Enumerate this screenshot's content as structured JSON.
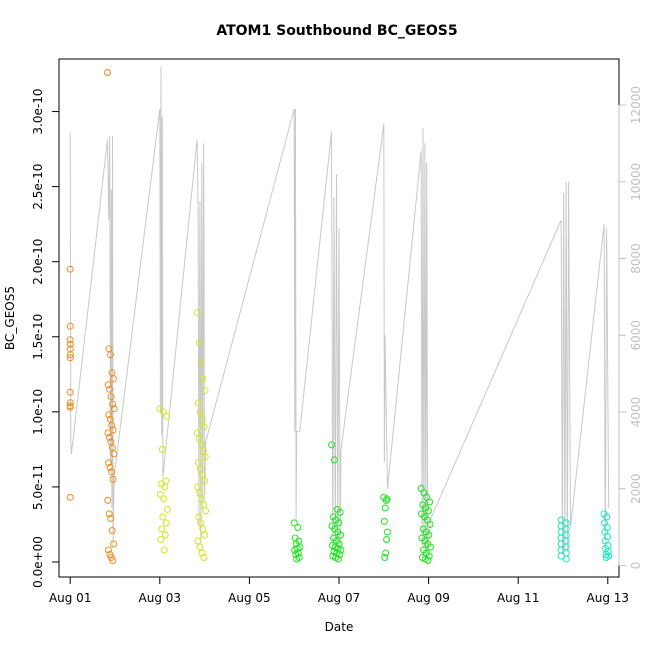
{
  "chart_data": {
    "type": "scatter",
    "title": "ATOM1 Southbound BC_GEOS5",
    "xlabel": "Date",
    "ylabel": "BC_GEOS5",
    "x_axis": {
      "type": "date",
      "range": [
        "2016-07-31T18:00",
        "2016-08-13T06:00"
      ],
      "ticks": [
        {
          "value": "2016-08-01",
          "label": "Aug 01"
        },
        {
          "value": "2016-08-03",
          "label": "Aug 03"
        },
        {
          "value": "2016-08-05",
          "label": "Aug 05"
        },
        {
          "value": "2016-08-07",
          "label": "Aug 07"
        },
        {
          "value": "2016-08-09",
          "label": "Aug 09"
        },
        {
          "value": "2016-08-11",
          "label": "Aug 11"
        },
        {
          "value": "2016-08-13",
          "label": "Aug 13"
        }
      ]
    },
    "y_axis_left": {
      "range": [
        -1e-11,
        3.35e-10
      ],
      "ticks": [
        {
          "value": 0,
          "label": "0.0e+00"
        },
        {
          "value": 5e-11,
          "label": "5.0e-11"
        },
        {
          "value": 1e-10,
          "label": "1.0e-10"
        },
        {
          "value": 1.5e-10,
          "label": "1.5e-10"
        },
        {
          "value": 2e-10,
          "label": "2.0e-10"
        },
        {
          "value": 2.5e-10,
          "label": "2.5e-10"
        },
        {
          "value": 3e-10,
          "label": "3.0e-10"
        }
      ]
    },
    "y_axis_right": {
      "range": [
        -300,
        13200
      ],
      "color": "#c0c0c0",
      "ticks": [
        {
          "value": 0,
          "label": "0"
        },
        {
          "value": 2000,
          "label": "2000"
        },
        {
          "value": 4000,
          "label": "4000"
        },
        {
          "value": 6000,
          "label": "6000"
        },
        {
          "value": 8000,
          "label": "8000"
        },
        {
          "value": 10000,
          "label": "10000"
        },
        {
          "value": 12000,
          "label": "12000"
        }
      ]
    },
    "grid": false,
    "legend": "none",
    "series": [
      {
        "style": "open-circle",
        "axis": "left",
        "groups": [
          {
            "date": "2016-08-01",
            "t_start": "2016-08-01T00:00",
            "t_end": "2016-08-01T00:05",
            "color": "#f08c1e",
            "y": [
              1.95e-10,
              1.57e-10,
              1.48e-10,
              1.45e-10,
              1.42e-10,
              1.38e-10,
              1.36e-10,
              1.13e-10,
              1.06e-10,
              1.04e-10,
              1.03e-10,
              4.3e-11
            ]
          },
          {
            "date": "2016-08-01",
            "t_start": "2016-08-01T20:00",
            "t_end": "2016-08-01T23:30",
            "color": "#f08c1e",
            "y": [
              3.26e-10,
              1.42e-10,
              1.38e-10,
              1.26e-10,
              1.22e-10,
              1.18e-10,
              1.15e-10,
              1.1e-10,
              1.05e-10,
              1.02e-10,
              9.8e-11,
              9.5e-11,
              9.1e-11,
              8.8e-11,
              8.6e-11,
              8.3e-11,
              8e-11,
              7.6e-11,
              7.2e-11,
              6.6e-11,
              6.3e-11,
              6e-11,
              5.5e-11,
              4.1e-11,
              3.2e-11,
              2.9e-11,
              2.1e-11,
              1.2e-11,
              8e-12,
              5e-12,
              3e-12,
              1e-12
            ]
          },
          {
            "date": "2016-08-03",
            "t_start": "2016-08-03T00:00",
            "t_end": "2016-08-03T04:00",
            "color": "#d2e61e",
            "y": [
              1.02e-10,
              1e-10,
              9.7e-11,
              7.5e-11,
              5.4e-11,
              5.2e-11,
              5e-11,
              4.5e-11,
              4.2e-11,
              3.5e-11,
              3e-11,
              2.6e-11,
              2.2e-11,
              1.8e-11,
              1.5e-11,
              8e-12
            ]
          },
          {
            "date": "2016-08-03",
            "t_start": "2016-08-03T20:00",
            "t_end": "2016-08-04T00:30",
            "color": "#d2e61e",
            "y": [
              1.66e-10,
              1.46e-10,
              1.33e-10,
              1.22e-10,
              1.14e-10,
              1.06e-10,
              1e-10,
              9.5e-11,
              9e-11,
              8.6e-11,
              8.2e-11,
              7.8e-11,
              7.4e-11,
              7e-11,
              6.6e-11,
              6.2e-11,
              5.8e-11,
              5.4e-11,
              5e-11,
              4.6e-11,
              4.2e-11,
              3.8e-11,
              3.4e-11,
              3e-11,
              2.6e-11,
              2.2e-11,
              1.8e-11,
              1.4e-11,
              1e-11,
              6e-12,
              3e-12
            ]
          },
          {
            "date": "2016-08-06",
            "t_start": "2016-08-06T00:00",
            "t_end": "2016-08-06T03:00",
            "color": "#1ee61e",
            "y": [
              2.6e-11,
              2.3e-11,
              1.6e-11,
              1.4e-11,
              1.2e-11,
              1e-11,
              9e-12,
              8e-12,
              6e-12,
              5e-12,
              3e-12,
              2e-12
            ]
          },
          {
            "date": "2016-08-06",
            "t_start": "2016-08-06T20:00",
            "t_end": "2016-08-07T01:00",
            "color": "#1ee61e",
            "y": [
              7.8e-11,
              6.8e-11,
              3.5e-11,
              3.3e-11,
              3e-11,
              2.8e-11,
              2.6e-11,
              2.4e-11,
              2.2e-11,
              2e-11,
              1.8e-11,
              1.6e-11,
              1.4e-11,
              1.2e-11,
              1.1e-11,
              1e-11,
              9e-12,
              8e-12,
              7e-12,
              6e-12,
              5e-12,
              4e-12,
              3e-12,
              2e-12
            ]
          },
          {
            "date": "2016-08-08",
            "t_start": "2016-08-08T00:00",
            "t_end": "2016-08-08T02:00",
            "color": "#1ee61e",
            "y": [
              4.3e-11,
              4.2e-11,
              4.1e-11,
              3.6e-11,
              2.7e-11,
              2e-11,
              1.5e-11,
              6e-12,
              3e-12
            ]
          },
          {
            "date": "2016-08-08",
            "t_start": "2016-08-08T20:00",
            "t_end": "2016-08-09T01:00",
            "color": "#1ee61e",
            "y": [
              4.9e-11,
              4.6e-11,
              4.3e-11,
              4e-11,
              3.8e-11,
              3.6e-11,
              3.4e-11,
              3.2e-11,
              3e-11,
              2.8e-11,
              2.5e-11,
              2.2e-11,
              2e-11,
              1.8e-11,
              1.6e-11,
              1.4e-11,
              1.2e-11,
              1e-11,
              8e-12,
              6e-12,
              4e-12,
              3e-12,
              2e-12,
              1e-12
            ]
          },
          {
            "date": "2016-08-12",
            "t_start": "2016-08-11T23:00",
            "t_end": "2016-08-12T04:00",
            "color": "#1ee6be",
            "y": [
              2.8e-11,
              2.6e-11,
              2.4e-11,
              2.2e-11,
              2e-11,
              1.8e-11,
              1.6e-11,
              1.4e-11,
              1.2e-11,
              1e-11,
              8e-12,
              6e-12,
              4e-12,
              2e-12
            ]
          },
          {
            "date": "2016-08-13",
            "t_start": "2016-08-12T22:00",
            "t_end": "2016-08-13T00:30",
            "color": "#1ee6be",
            "y": [
              3.2e-11,
              3e-11,
              2.6e-11,
              2.3e-11,
              2e-11,
              1.7e-11,
              1.4e-11,
              1.1e-11,
              9e-12,
              7e-12,
              5e-12,
              4e-12,
              3e-12
            ]
          }
        ]
      },
      {
        "style": "line",
        "axis": "right",
        "color": "#c8c8c8",
        "points": [
          [
            "2016-08-01T00:00",
            11300
          ],
          [
            "2016-08-01T00:20",
            3200
          ],
          [
            "2016-08-01T00:40",
            2900
          ],
          [
            "2016-08-01T20:00",
            11100
          ],
          [
            "2016-08-01T20:40",
            9000
          ],
          [
            "2016-08-01T21:10",
            11200
          ],
          [
            "2016-08-01T21:40",
            2600
          ],
          [
            "2016-08-01T22:00",
            9800
          ],
          [
            "2016-08-01T22:20",
            1500
          ],
          [
            "2016-08-01T22:40",
            11200
          ],
          [
            "2016-08-01T23:00",
            500
          ],
          [
            "2016-08-01T23:30",
            2300
          ],
          [
            "2016-08-03T00:00",
            11900
          ],
          [
            "2016-08-03T00:20",
            4000
          ],
          [
            "2016-08-03T00:40",
            13000
          ],
          [
            "2016-08-03T01:00",
            3400
          ],
          [
            "2016-08-03T01:20",
            11700
          ],
          [
            "2016-08-03T01:40",
            2300
          ],
          [
            "2016-08-03T20:00",
            11100
          ],
          [
            "2016-08-03T20:30",
            9200
          ],
          [
            "2016-08-03T21:00",
            1000
          ],
          [
            "2016-08-03T21:30",
            9500
          ],
          [
            "2016-08-03T22:00",
            600
          ],
          [
            "2016-08-03T22:30",
            10500
          ],
          [
            "2016-08-03T23:00",
            1500
          ],
          [
            "2016-08-03T23:30",
            11000
          ],
          [
            "2016-08-04T00:00",
            1800
          ],
          [
            "2016-08-04T00:30",
            3200
          ],
          [
            "2016-08-06T00:00",
            11900
          ],
          [
            "2016-08-06T00:20",
            3500
          ],
          [
            "2016-08-06T00:40",
            11900
          ],
          [
            "2016-08-06T01:00",
            1200
          ],
          [
            "2016-08-06T01:20",
            3500
          ],
          [
            "2016-08-06T03:00",
            3500
          ],
          [
            "2016-08-06T20:00",
            11300
          ],
          [
            "2016-08-06T20:40",
            500
          ],
          [
            "2016-08-06T21:20",
            9600
          ],
          [
            "2016-08-06T22:00",
            400
          ],
          [
            "2016-08-06T22:40",
            10200
          ],
          [
            "2016-08-06T23:20",
            600
          ],
          [
            "2016-08-07T00:00",
            8800
          ],
          [
            "2016-08-07T00:40",
            400
          ],
          [
            "2016-08-07T01:00",
            3000
          ],
          [
            "2016-08-08T00:00",
            11500
          ],
          [
            "2016-08-08T00:20",
            2700
          ],
          [
            "2016-08-08T00:40",
            6000
          ],
          [
            "2016-08-08T02:00",
            2000
          ],
          [
            "2016-08-08T20:00",
            10800
          ],
          [
            "2016-08-08T20:30",
            500
          ],
          [
            "2016-08-08T21:00",
            11400
          ],
          [
            "2016-08-08T21:30",
            300
          ],
          [
            "2016-08-08T22:00",
            11000
          ],
          [
            "2016-08-08T22:30",
            200
          ],
          [
            "2016-08-08T23:00",
            10500
          ],
          [
            "2016-08-08T23:30",
            300
          ],
          [
            "2016-08-09T01:00",
            1200
          ],
          [
            "2016-08-11T23:00",
            9000
          ],
          [
            "2016-08-11T23:40",
            300
          ],
          [
            "2016-08-12T00:20",
            9700
          ],
          [
            "2016-08-12T01:00",
            400
          ],
          [
            "2016-08-12T01:40",
            10000
          ],
          [
            "2016-08-12T02:20",
            400
          ],
          [
            "2016-08-12T03:00",
            10000
          ],
          [
            "2016-08-12T04:00",
            1000
          ],
          [
            "2016-08-12T22:00",
            8900
          ],
          [
            "2016-08-12T22:40",
            300
          ],
          [
            "2016-08-12T23:20",
            8800
          ],
          [
            "2016-08-13T00:30",
            1500
          ]
        ]
      }
    ]
  }
}
